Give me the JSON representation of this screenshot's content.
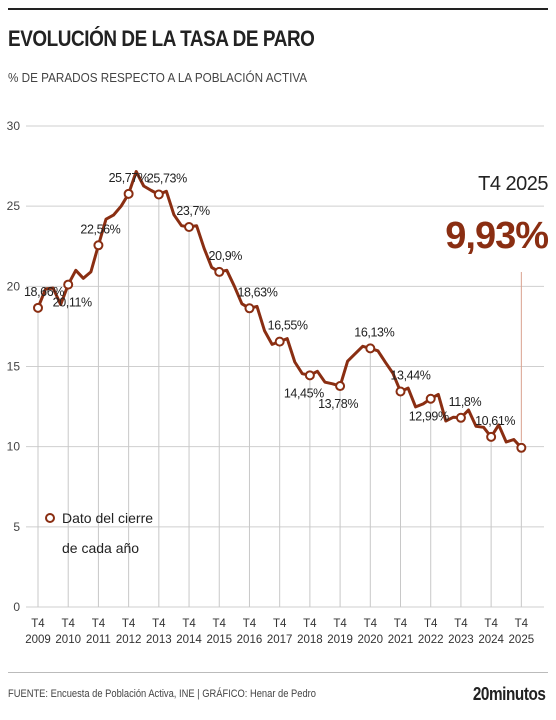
{
  "header": {
    "title": "EVOLUCIÓN DE LA TASA DE PARO",
    "subtitle": "% DE PARADOS RESPECTO A LA POBLACIÓN ACTIVA"
  },
  "footer": {
    "source": "FUENTE: Encuesta de Población Activa, INE  |  GRÁFICO: Henar de Pedro",
    "brand": "20minutos"
  },
  "colors": {
    "line": "#8a2e12",
    "grid": "#cfcfcf",
    "text": "#222222"
  },
  "chart_data": {
    "type": "line",
    "title": "EVOLUCIÓN DE LA TASA DE PARO",
    "subtitle": "% DE PARADOS RESPECTO A LA POBLACIÓN ACTIVA",
    "ylim": [
      0,
      30
    ],
    "yticks": [
      0,
      5,
      10,
      15,
      20,
      25,
      30
    ],
    "xlim": [
      2009,
      2025.75
    ],
    "x_tick_top": "T4",
    "x_ticks": [
      2009,
      2010,
      2011,
      2012,
      2013,
      2014,
      2015,
      2016,
      2017,
      2018,
      2019,
      2020,
      2021,
      2022,
      2023,
      2024,
      2025
    ],
    "grid": true,
    "series": [
      {
        "quarterly": [
          {
            "x": 2009.0,
            "y": 18.66
          },
          {
            "x": 2009.25,
            "y": 19.84
          },
          {
            "x": 2009.5,
            "y": 19.89
          },
          {
            "x": 2009.75,
            "y": 18.86
          },
          {
            "x": 2010.0,
            "y": 20.11
          },
          {
            "x": 2010.25,
            "y": 21.0
          },
          {
            "x": 2010.5,
            "y": 20.5
          },
          {
            "x": 2010.75,
            "y": 20.9
          },
          {
            "x": 2011.0,
            "y": 22.56
          },
          {
            "x": 2011.25,
            "y": 24.19
          },
          {
            "x": 2011.5,
            "y": 24.44
          },
          {
            "x": 2011.75,
            "y": 25.0
          },
          {
            "x": 2012.0,
            "y": 25.77
          },
          {
            "x": 2012.25,
            "y": 27.16
          },
          {
            "x": 2012.5,
            "y": 26.26
          },
          {
            "x": 2012.75,
            "y": 25.98
          },
          {
            "x": 2013.0,
            "y": 25.73
          },
          {
            "x": 2013.25,
            "y": 25.93
          },
          {
            "x": 2013.5,
            "y": 24.47
          },
          {
            "x": 2013.75,
            "y": 23.78
          },
          {
            "x": 2014.0,
            "y": 23.7
          },
          {
            "x": 2014.25,
            "y": 23.78
          },
          {
            "x": 2014.5,
            "y": 22.37
          },
          {
            "x": 2014.75,
            "y": 21.18
          },
          {
            "x": 2015.0,
            "y": 20.9
          },
          {
            "x": 2015.25,
            "y": 21.0
          },
          {
            "x": 2015.5,
            "y": 20.0
          },
          {
            "x": 2015.75,
            "y": 18.91
          },
          {
            "x": 2016.0,
            "y": 18.63
          },
          {
            "x": 2016.25,
            "y": 18.75
          },
          {
            "x": 2016.5,
            "y": 17.22
          },
          {
            "x": 2016.75,
            "y": 16.38
          },
          {
            "x": 2017.0,
            "y": 16.55
          },
          {
            "x": 2017.25,
            "y": 16.74
          },
          {
            "x": 2017.5,
            "y": 15.28
          },
          {
            "x": 2017.75,
            "y": 14.55
          },
          {
            "x": 2018.0,
            "y": 14.45
          },
          {
            "x": 2018.25,
            "y": 14.7
          },
          {
            "x": 2018.5,
            "y": 14.02
          },
          {
            "x": 2018.75,
            "y": 13.92
          },
          {
            "x": 2019.0,
            "y": 13.78
          },
          {
            "x": 2019.25,
            "y": 15.33
          },
          {
            "x": 2019.5,
            "y": 15.8
          },
          {
            "x": 2019.75,
            "y": 16.26
          },
          {
            "x": 2020.0,
            "y": 16.13
          },
          {
            "x": 2020.25,
            "y": 15.98
          },
          {
            "x": 2020.5,
            "y": 15.26
          },
          {
            "x": 2020.75,
            "y": 14.57
          },
          {
            "x": 2021.0,
            "y": 13.44
          },
          {
            "x": 2021.25,
            "y": 13.65
          },
          {
            "x": 2021.5,
            "y": 12.48
          },
          {
            "x": 2021.75,
            "y": 12.67
          },
          {
            "x": 2022.0,
            "y": 12.99
          },
          {
            "x": 2022.25,
            "y": 13.26
          },
          {
            "x": 2022.5,
            "y": 11.6
          },
          {
            "x": 2022.75,
            "y": 11.84
          },
          {
            "x": 2023.0,
            "y": 11.8
          },
          {
            "x": 2023.25,
            "y": 12.29
          },
          {
            "x": 2023.5,
            "y": 11.27
          },
          {
            "x": 2023.75,
            "y": 11.21
          },
          {
            "x": 2024.0,
            "y": 10.61
          },
          {
            "x": 2024.25,
            "y": 11.36
          },
          {
            "x": 2024.5,
            "y": 10.29
          },
          {
            "x": 2024.75,
            "y": 10.45
          },
          {
            "x": 2025.0,
            "y": 9.93
          }
        ],
        "year_end": [
          {
            "x": 2009,
            "y": 18.66,
            "label": "18,66%"
          },
          {
            "x": 2010,
            "y": 20.11,
            "label": "20,11%"
          },
          {
            "x": 2011,
            "y": 22.56,
            "label": "22,56%"
          },
          {
            "x": 2012,
            "y": 25.77,
            "label": "25,77%"
          },
          {
            "x": 2013,
            "y": 25.73,
            "label": "25,73%"
          },
          {
            "x": 2014,
            "y": 23.7,
            "label": "23,7%"
          },
          {
            "x": 2015,
            "y": 20.9,
            "label": "20,9%"
          },
          {
            "x": 2016,
            "y": 18.63,
            "label": "18,63%"
          },
          {
            "x": 2017,
            "y": 16.55,
            "label": "16,55%"
          },
          {
            "x": 2018,
            "y": 14.45,
            "label": "14,45%"
          },
          {
            "x": 2019,
            "y": 13.78,
            "label": "13,78%"
          },
          {
            "x": 2020,
            "y": 16.13,
            "label": "16,13%"
          },
          {
            "x": 2021,
            "y": 13.44,
            "label": "13,44%"
          },
          {
            "x": 2022,
            "y": 12.99,
            "label": "12,99%"
          },
          {
            "x": 2023,
            "y": 11.8,
            "label": "11,8%"
          },
          {
            "x": 2024,
            "y": 10.61,
            "label": "10,61%"
          },
          {
            "x": 2025,
            "y": 9.93,
            "label": ""
          }
        ]
      }
    ],
    "legend": {
      "line1": "Dato del cierre",
      "line2": "de cada año",
      "position": "bottom-left"
    },
    "annotation": {
      "title": "T4 2025",
      "value": "9,93%"
    }
  }
}
